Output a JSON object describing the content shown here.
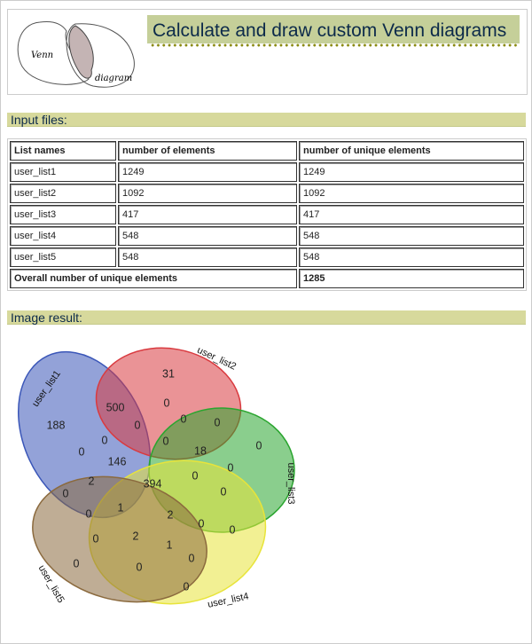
{
  "header": {
    "title": "Calculate and draw custom Venn diagrams",
    "logo_text": [
      "Venn",
      "diagram"
    ]
  },
  "sections": {
    "input": "Input files:",
    "result": "Image result:"
  },
  "table": {
    "headers": [
      "List names",
      "number of elements",
      "number of unique elements"
    ],
    "rows": [
      [
        "user_list1",
        "1249",
        "1249"
      ],
      [
        "user_list2",
        "1092",
        "1092"
      ],
      [
        "user_list3",
        "417",
        "417"
      ],
      [
        "user_list4",
        "548",
        "548"
      ],
      [
        "user_list5",
        "548",
        "548"
      ]
    ],
    "total_label": "Overall number of unique elements",
    "total_value": "1285"
  },
  "venn": {
    "sets": [
      {
        "name": "user_list1",
        "color": "#3a56b8"
      },
      {
        "name": "user_list2",
        "color": "#d93a3f"
      },
      {
        "name": "user_list3",
        "color": "#2aa52f"
      },
      {
        "name": "user_list4",
        "color": "#e8e43a"
      },
      {
        "name": "user_list5",
        "color": "#8b6a3e"
      }
    ],
    "region_counts": [
      "31",
      "500",
      "188",
      "0",
      "0",
      "0",
      "0",
      "0",
      "0",
      "0",
      "146",
      "18",
      "0",
      "0",
      "2",
      "394",
      "0",
      "0",
      "0",
      "1",
      "0",
      "2",
      "0",
      "0",
      "2",
      "0",
      "1",
      "0",
      "0",
      "0",
      "0"
    ]
  }
}
